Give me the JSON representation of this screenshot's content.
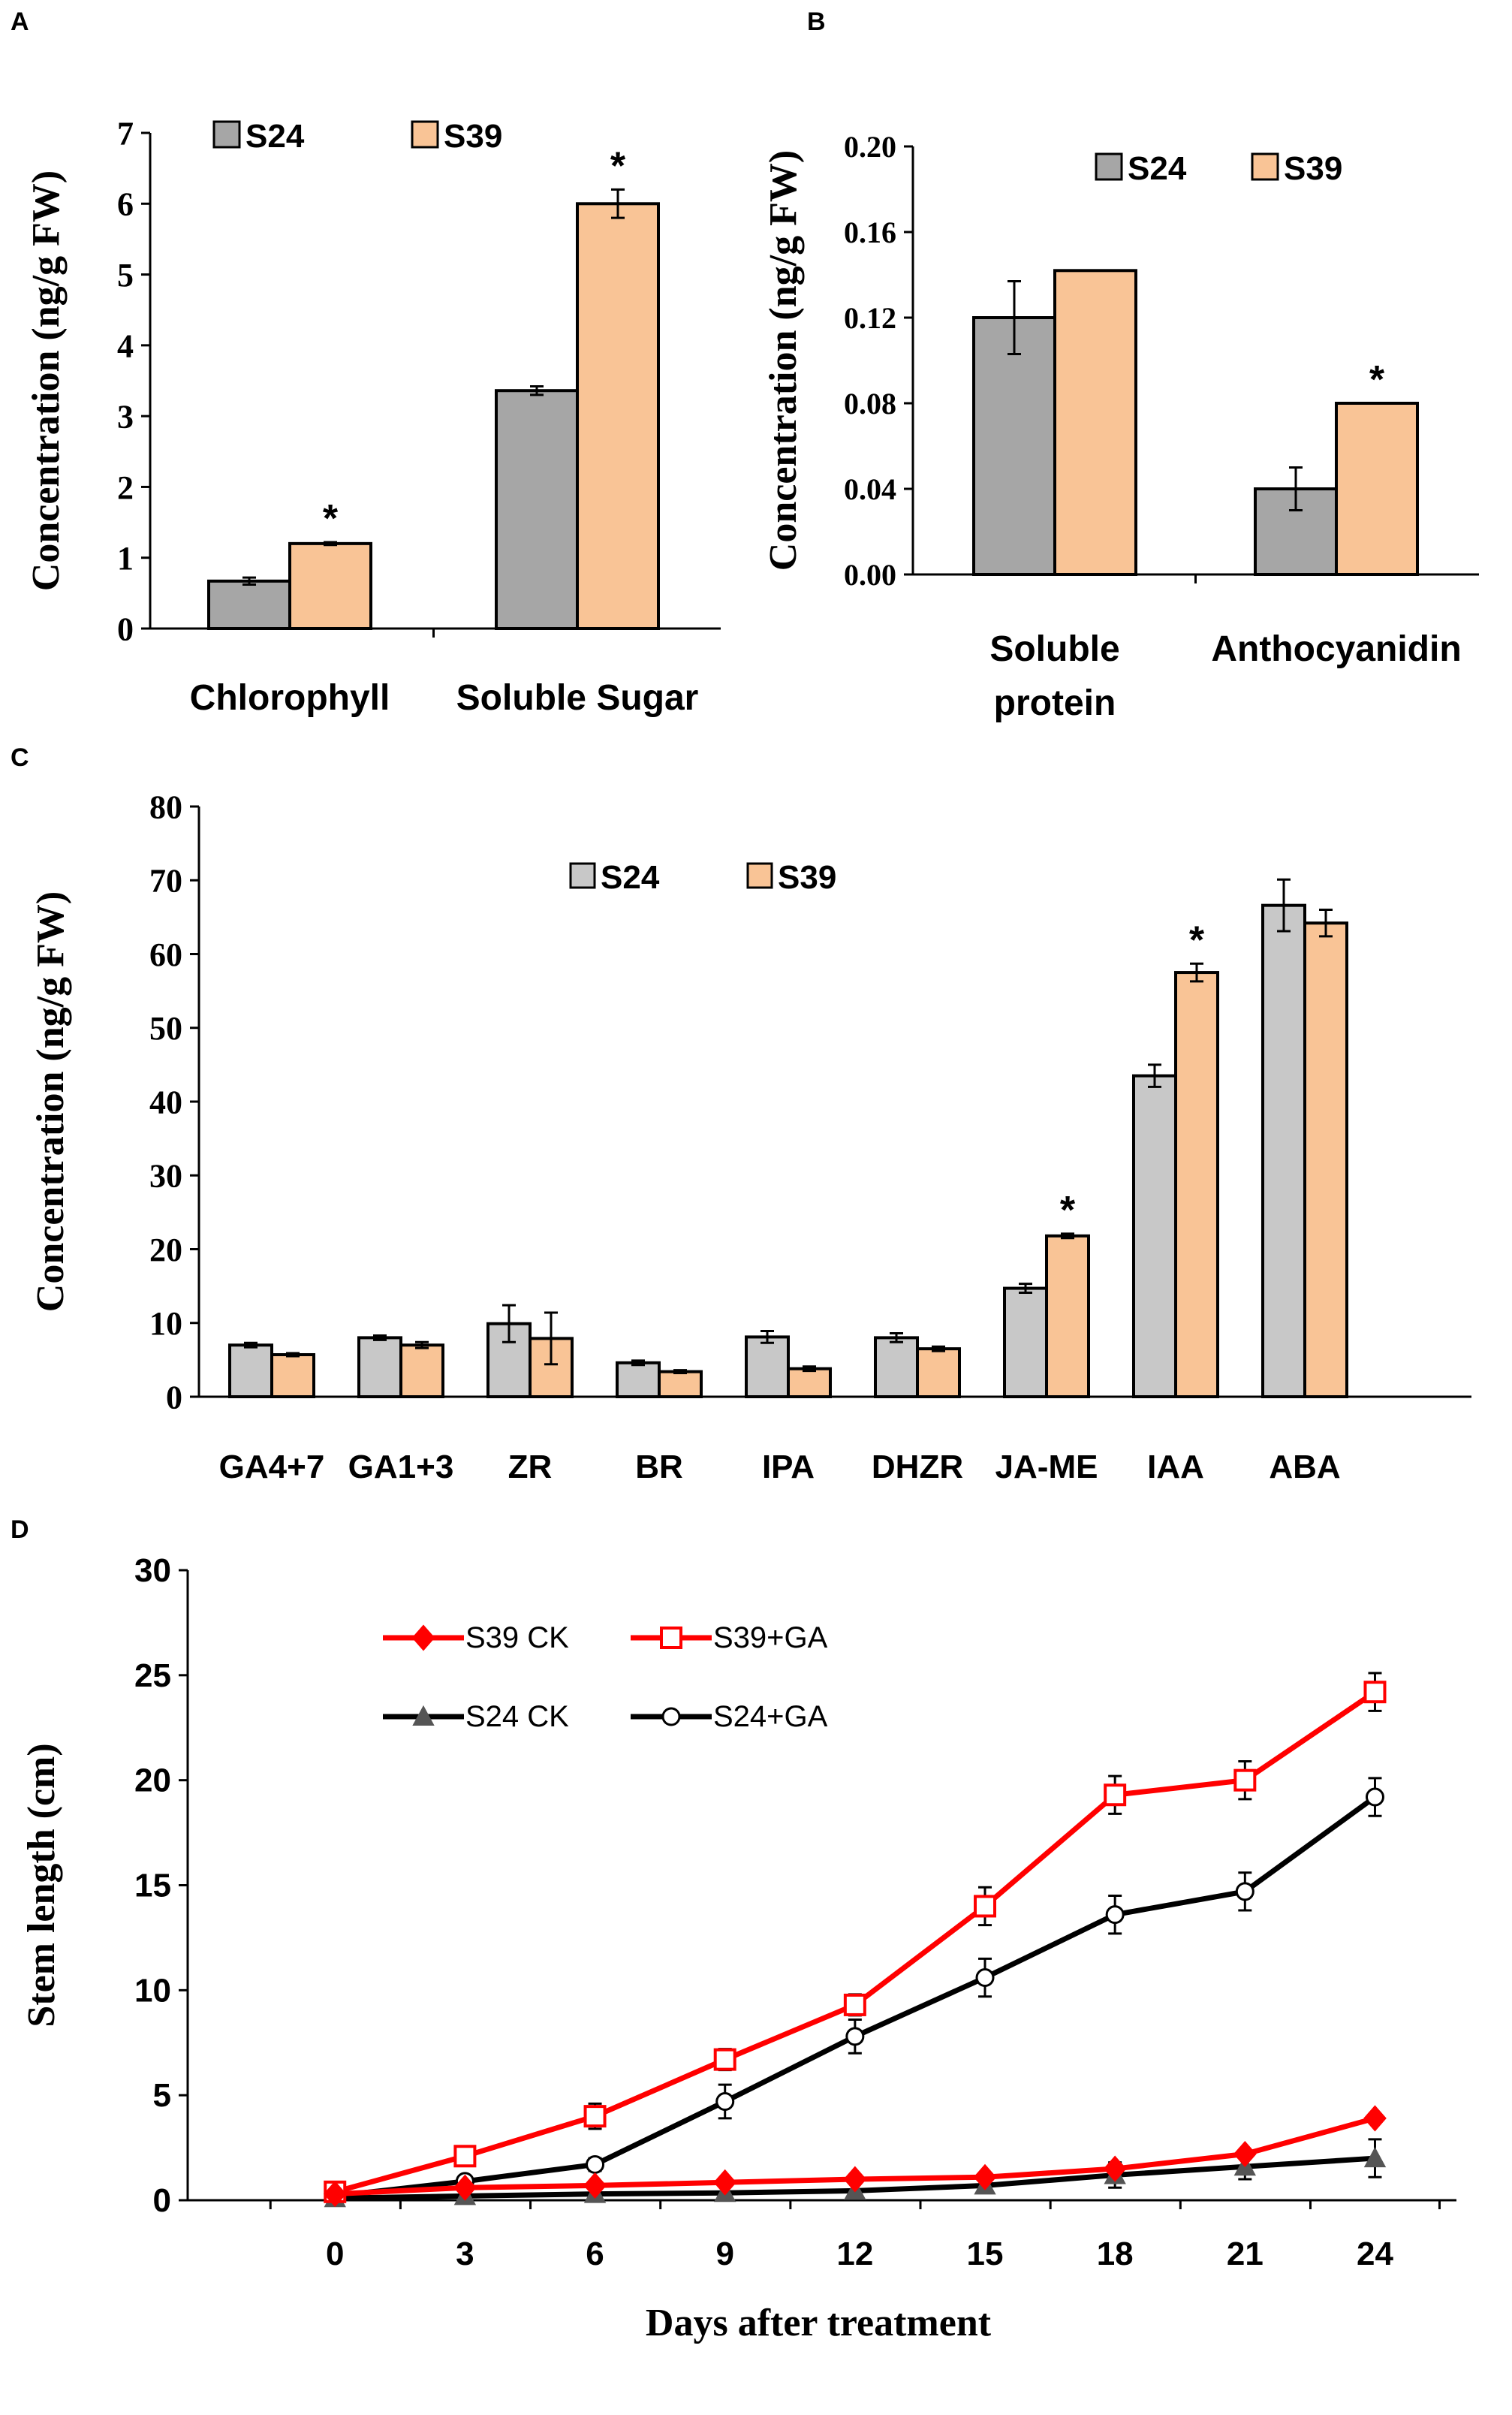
{
  "figure": {
    "panels": [
      "A",
      "B",
      "C",
      "D"
    ]
  },
  "chart_data": [
    {
      "id": "A",
      "type": "bar",
      "panel_label": "A",
      "ylabel": "Concentration (ng/g FW)",
      "ylim": [
        0,
        7
      ],
      "yticks": [
        0,
        1,
        2,
        3,
        4,
        5,
        6,
        7
      ],
      "ytick_labels": [
        "0",
        "1",
        "2",
        "3",
        "4",
        "5",
        "6",
        "7"
      ],
      "categories": [
        "Chlorophyll",
        "Soluble Sugar"
      ],
      "series": [
        {
          "name": "S24",
          "color": "#a6a6a6",
          "values": [
            0.67,
            3.36
          ],
          "errors": [
            0.05,
            0.06
          ]
        },
        {
          "name": "S39",
          "color": "#f9c496",
          "values": [
            1.2,
            6.0
          ],
          "errors": [
            0.02,
            0.2
          ]
        }
      ],
      "significance": [
        {
          "category": 0,
          "series": 1,
          "text": "*"
        },
        {
          "category": 1,
          "series": 1,
          "text": "*"
        }
      ],
      "legend": "top"
    },
    {
      "id": "B",
      "type": "bar",
      "panel_label": "B",
      "ylabel": "Concentration (ng/g FW)",
      "ylim": [
        0,
        0.2
      ],
      "yticks": [
        0,
        0.04,
        0.08,
        0.12,
        0.16,
        0.2
      ],
      "ytick_labels": [
        "0.00",
        "0.04",
        "0.08",
        "0.12",
        "0.16",
        "0.20"
      ],
      "categories": [
        "Soluble protein",
        "Anthocyanidin"
      ],
      "category_lines": [
        [
          "Soluble",
          "protein"
        ],
        [
          "Anthocyanidin"
        ]
      ],
      "series": [
        {
          "name": "S24",
          "color": "#a6a6a6",
          "values": [
            0.12,
            0.04
          ],
          "errors": [
            0.017,
            0.01
          ]
        },
        {
          "name": "S39",
          "color": "#f9c496",
          "values": [
            0.142,
            0.08
          ],
          "errors": [
            0.0,
            0.0
          ]
        }
      ],
      "significance": [
        {
          "category": 1,
          "series": 1,
          "text": "*"
        }
      ],
      "legend": "top-right"
    },
    {
      "id": "C",
      "type": "bar",
      "panel_label": "C",
      "ylabel": "Concentration (ng/g FW)",
      "ylim": [
        0,
        80
      ],
      "yticks": [
        0,
        10,
        20,
        30,
        40,
        50,
        60,
        70,
        80
      ],
      "ytick_labels": [
        "0",
        "10",
        "20",
        "30",
        "40",
        "50",
        "60",
        "70",
        "80"
      ],
      "categories": [
        "GA4+7",
        "GA1+3",
        "ZR",
        "BR",
        "IPA",
        "DHZR",
        "JA-ME",
        "IAA",
        "ABA"
      ],
      "series": [
        {
          "name": "S24",
          "color": "#c8c8c8",
          "values": [
            7.0,
            8.0,
            9.9,
            4.6,
            8.1,
            8.0,
            14.7,
            43.5,
            66.6
          ],
          "errors": [
            0.3,
            0.3,
            2.5,
            0.3,
            0.8,
            0.6,
            0.6,
            1.5,
            3.5
          ]
        },
        {
          "name": "S39",
          "color": "#f9c496",
          "values": [
            5.7,
            7.0,
            7.9,
            3.4,
            3.8,
            6.5,
            21.8,
            57.5,
            64.2
          ],
          "errors": [
            0.2,
            0.4,
            3.5,
            0.2,
            0.3,
            0.3,
            0.3,
            1.2,
            1.8
          ]
        }
      ],
      "significance": [
        {
          "category": 6,
          "series": 1,
          "text": "*"
        },
        {
          "category": 7,
          "series": 1,
          "text": "*"
        }
      ],
      "legend": "top-center"
    },
    {
      "id": "D",
      "type": "line",
      "panel_label": "D",
      "xlabel": "Days after treatment",
      "ylabel": "Stem length (cm)",
      "ylim": [
        0,
        30
      ],
      "xlim": [
        -3.4,
        26.4
      ],
      "yticks": [
        0,
        5,
        10,
        15,
        20,
        25,
        30
      ],
      "ytick_labels": [
        "0",
        "5",
        "10",
        "15",
        "20",
        "25",
        "30"
      ],
      "x": [
        0,
        3,
        6,
        9,
        12,
        15,
        18,
        21,
        24
      ],
      "xtick_labels": [
        "0",
        "3",
        "6",
        "9",
        "12",
        "15",
        "18",
        "21",
        "24"
      ],
      "series": [
        {
          "name": "S39 CK",
          "color": "#ff0000",
          "marker": "diamond-filled",
          "values": [
            0.3,
            0.6,
            0.7,
            0.85,
            1.0,
            1.1,
            1.5,
            2.2,
            3.9
          ],
          "errors": [
            0,
            0,
            0,
            0,
            0,
            0,
            0,
            0,
            0
          ]
        },
        {
          "name": "S39+GA",
          "color": "#ff0000",
          "marker": "square-open",
          "values": [
            0.4,
            2.1,
            4.0,
            6.7,
            9.3,
            14.0,
            19.3,
            20.0,
            24.2
          ],
          "errors": [
            0.2,
            0.3,
            0.6,
            0.5,
            0.5,
            0.9,
            0.9,
            0.9,
            0.9
          ]
        },
        {
          "name": "S24 CK",
          "color": "#000000",
          "marker": "triangle-filled",
          "values": [
            0.1,
            0.2,
            0.3,
            0.35,
            0.45,
            0.7,
            1.2,
            1.6,
            2.0
          ],
          "errors": [
            0,
            0,
            0,
            0,
            0,
            0,
            0.6,
            0.6,
            0.9
          ]
        },
        {
          "name": "S24+GA",
          "color": "#000000",
          "marker": "circle-open",
          "values": [
            0.2,
            0.9,
            1.7,
            4.7,
            7.8,
            10.6,
            13.6,
            14.7,
            19.2
          ],
          "errors": [
            0.2,
            0.2,
            0.3,
            0.8,
            0.8,
            0.9,
            0.9,
            0.9,
            0.9
          ]
        }
      ],
      "legend": "top-left"
    }
  ]
}
